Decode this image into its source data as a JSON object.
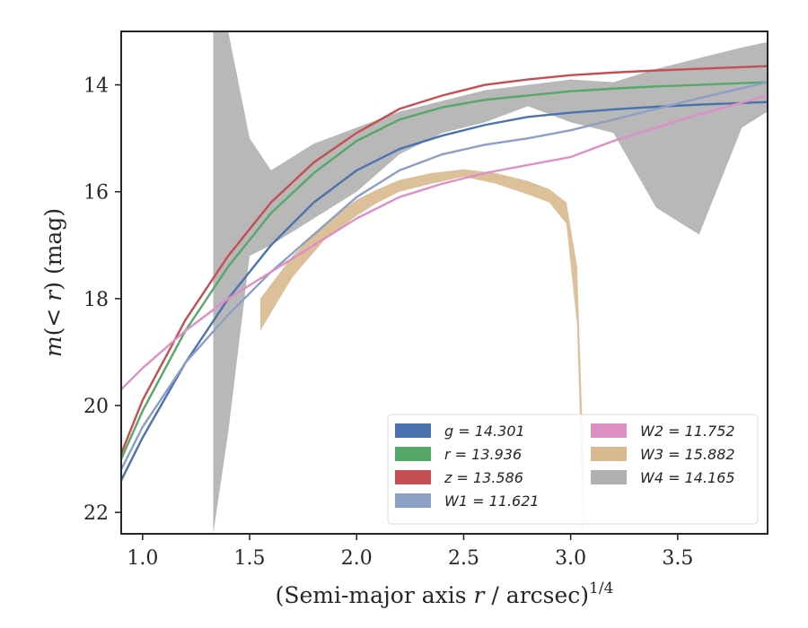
{
  "chart_data": {
    "type": "area",
    "xlabel": "(Semi-major axis r / arcsec)^1/4",
    "ylabel": "m(< r) (mag)",
    "xlim": [
      0.9,
      3.92
    ],
    "ylim": [
      22.4,
      13.0
    ],
    "y_inverted": true,
    "grid": false,
    "legend_position": "lower-right",
    "x_ticks": [
      "1.0",
      "1.5",
      "2.0",
      "2.5",
      "3.0",
      "3.5"
    ],
    "y_ticks": [
      "14",
      "16",
      "18",
      "20",
      "22"
    ],
    "series": [
      {
        "name": "g = 14.301",
        "color": "#4c72b0",
        "kind": "line",
        "x": [
          0.9,
          1.0,
          1.2,
          1.4,
          1.6,
          1.8,
          2.0,
          2.2,
          2.4,
          2.6,
          2.8,
          3.0,
          3.2,
          3.4,
          3.6,
          3.92
        ],
        "y": [
          21.4,
          20.6,
          19.2,
          18.0,
          17.0,
          16.2,
          15.6,
          15.2,
          14.95,
          14.75,
          14.6,
          14.52,
          14.46,
          14.41,
          14.37,
          14.32
        ]
      },
      {
        "name": "r = 13.936",
        "color": "#55a868",
        "kind": "line",
        "x": [
          0.9,
          1.0,
          1.2,
          1.4,
          1.6,
          1.8,
          2.0,
          2.2,
          2.4,
          2.6,
          2.8,
          3.0,
          3.2,
          3.4,
          3.6,
          3.92
        ],
        "y": [
          21.0,
          20.1,
          18.6,
          17.4,
          16.4,
          15.65,
          15.05,
          14.65,
          14.42,
          14.28,
          14.2,
          14.12,
          14.07,
          14.03,
          14.0,
          13.95
        ]
      },
      {
        "name": "z = 13.586",
        "color": "#c44e52",
        "kind": "line",
        "x": [
          0.9,
          1.0,
          1.2,
          1.4,
          1.6,
          1.8,
          2.0,
          2.2,
          2.4,
          2.6,
          2.8,
          3.0,
          3.2,
          3.4,
          3.6,
          3.92
        ],
        "y": [
          20.9,
          19.9,
          18.4,
          17.2,
          16.2,
          15.45,
          14.9,
          14.45,
          14.2,
          14.0,
          13.9,
          13.82,
          13.77,
          13.73,
          13.7,
          13.65
        ]
      },
      {
        "name": "W1 = 11.621",
        "color": "#8c9fc4",
        "kind": "line",
        "x": [
          0.9,
          1.0,
          1.2,
          1.4,
          1.6,
          1.8,
          2.0,
          2.2,
          2.4,
          2.6,
          2.8,
          3.0,
          3.2,
          3.4,
          3.6,
          3.92
        ],
        "y": [
          21.2,
          20.4,
          19.2,
          18.3,
          17.5,
          16.8,
          16.1,
          15.6,
          15.3,
          15.12,
          15.0,
          14.85,
          14.65,
          14.45,
          14.25,
          13.95
        ]
      },
      {
        "name": "W2 = 11.752",
        "color": "#dd8fc6",
        "kind": "line",
        "x": [
          0.9,
          1.0,
          1.2,
          1.4,
          1.6,
          1.8,
          2.0,
          2.2,
          2.4,
          2.6,
          2.8,
          3.0,
          3.2,
          3.4,
          3.6,
          3.92
        ],
        "y": [
          19.7,
          19.3,
          18.6,
          18.0,
          17.5,
          17.0,
          16.5,
          16.1,
          15.85,
          15.65,
          15.5,
          15.35,
          15.05,
          14.8,
          14.55,
          14.2
        ]
      },
      {
        "name": "W3 = 15.882",
        "color": "#d8b98f",
        "kind": "band",
        "x": [
          1.55,
          1.7,
          1.85,
          2.0,
          2.1,
          2.2,
          2.35,
          2.5,
          2.65,
          2.8,
          2.9,
          2.98,
          3.03,
          3.06
        ],
        "y_low": [
          18.6,
          17.6,
          16.9,
          16.45,
          16.2,
          16.0,
          15.85,
          15.72,
          15.85,
          16.05,
          16.2,
          16.6,
          18.5,
          22.4
        ],
        "y_high": [
          18.0,
          17.2,
          16.6,
          16.15,
          15.95,
          15.78,
          15.65,
          15.58,
          15.65,
          15.8,
          15.95,
          16.2,
          17.4,
          21.0
        ]
      },
      {
        "name": "W4 = 14.165",
        "color": "#b0b0b0",
        "kind": "band",
        "x": [
          1.33,
          1.4,
          1.5,
          1.6,
          1.8,
          2.0,
          2.2,
          2.4,
          2.6,
          2.8,
          3.0,
          3.2,
          3.4,
          3.6,
          3.8,
          3.92
        ],
        "y_low": [
          22.4,
          20.5,
          17.2,
          17.0,
          16.5,
          16.0,
          15.3,
          14.9,
          14.7,
          14.4,
          14.7,
          14.9,
          16.3,
          16.8,
          14.8,
          14.5
        ],
        "y_high": [
          13.0,
          13.0,
          15.0,
          15.6,
          15.1,
          14.8,
          14.5,
          14.3,
          14.1,
          14.0,
          13.9,
          13.95,
          13.7,
          13.5,
          13.3,
          13.2
        ]
      }
    ],
    "legend": [
      {
        "label": "g = 14.301",
        "color": "#4c72b0"
      },
      {
        "label": "r = 13.936",
        "color": "#55a868"
      },
      {
        "label": "z = 13.586",
        "color": "#c44e52"
      },
      {
        "label": "W1 = 11.621",
        "color": "#8c9fc4"
      },
      {
        "label": "W2 = 11.752",
        "color": "#dd8fc6"
      },
      {
        "label": "W3 = 15.882",
        "color": "#d8b98f"
      },
      {
        "label": "W4 = 14.165",
        "color": "#b0b0b0"
      }
    ]
  }
}
